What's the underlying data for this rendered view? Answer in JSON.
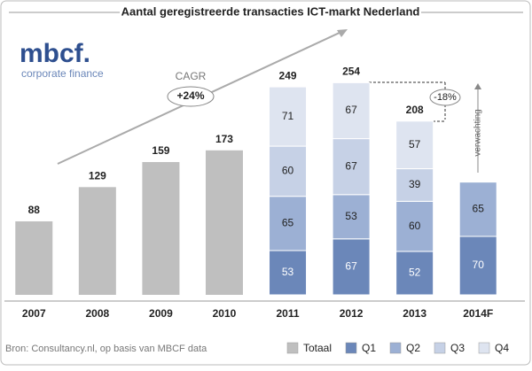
{
  "chart_data": {
    "type": "bar",
    "stacked": true,
    "title": "Aantal geregistreerde transacties ICT-markt Nederland",
    "categories": [
      "2007",
      "2008",
      "2009",
      "2010",
      "2011",
      "2012",
      "2013",
      "2014F"
    ],
    "series": [
      {
        "name": "Totaal",
        "color": "#bfbfbf",
        "values": [
          88,
          129,
          159,
          173,
          null,
          null,
          null,
          null
        ]
      },
      {
        "name": "Q1",
        "color": "#6b87b9",
        "values": [
          null,
          null,
          null,
          null,
          53,
          67,
          52,
          70
        ]
      },
      {
        "name": "Q2",
        "color": "#9cb0d4",
        "values": [
          null,
          null,
          null,
          null,
          65,
          53,
          60,
          65
        ]
      },
      {
        "name": "Q3",
        "color": "#c6d1e6",
        "values": [
          null,
          null,
          null,
          null,
          60,
          67,
          39,
          null
        ]
      },
      {
        "name": "Q4",
        "color": "#dee4f0",
        "values": [
          null,
          null,
          null,
          null,
          71,
          67,
          57,
          null
        ]
      }
    ],
    "totals": [
      null,
      null,
      null,
      null,
      249,
      254,
      208,
      null
    ],
    "ylim": [
      0,
      300
    ],
    "annotations": {
      "cagr_label": "CAGR",
      "cagr": "+24%",
      "change": "-18%",
      "forecast": "verwachting"
    },
    "logo": "mbcf.",
    "logo_subtitle": "corporate finance",
    "source": "Bron: Consultancy.nl, op basis van MBCF data"
  }
}
